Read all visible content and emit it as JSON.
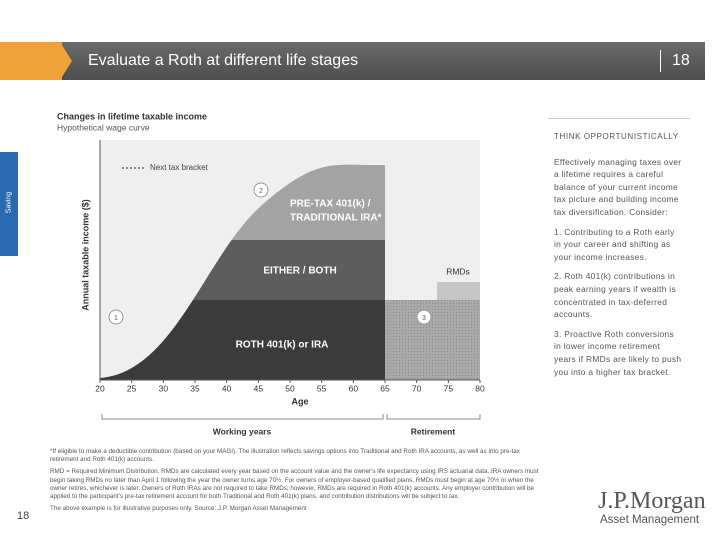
{
  "header": {
    "title": "Evaluate a Roth at different life stages",
    "page_number": "18"
  },
  "side_tab": "Saving",
  "chart": {
    "title": "Changes in lifetime taxable income",
    "subtitle": "Hypothetical wage curve",
    "legend_label": "Next tax bracket",
    "y_axis_label": "Annual taxable income ($)",
    "x_axis_label": "Age",
    "xlim": [
      20,
      80
    ],
    "xticks": [
      20,
      25,
      30,
      35,
      40,
      45,
      50,
      55,
      60,
      65,
      70,
      75,
      80
    ],
    "region_labels": [
      "PRE-TAX 401(k) /",
      "TRADITIONAL IRA*",
      "EITHER / BOTH",
      "ROTH 401(k) or IRA",
      "RMDs"
    ],
    "markers": [
      "1",
      "2",
      "3"
    ],
    "period_labels": [
      "Working years",
      "Retirement"
    ]
  },
  "sidebar": {
    "heading": "THINK OPPORTUNISTICALLY",
    "paragraphs": [
      "Effectively managing taxes over a lifetime requires a careful balance of your current income tax picture and building income tax diversification. Consider:",
      "1. Contributing to a Roth early in your career and shifting as your income increases.",
      "2. Roth 401(k) contributions in peak earning years if wealth is concentrated in tax-deferred accounts.",
      "3. Proactive Roth conversions in lower income retirement years if RMDs are likely to push you into a higher tax bracket."
    ]
  },
  "footnotes": [
    "*If eligible to make a deductible contribution (based on your MAGI). The illustration reflects savings options into Traditional and Roth IRA accounts, as well as into pre-tax retirement and Roth 401(k) accounts.",
    "RMD = Required Minimum Distribution. RMDs are calculated every year based on the account value and the owner's life expectancy using IRS actuarial data. IRA owners must begin taking RMDs no later than April 1 following the year the owner turns age 70½. For owners of employer-based qualified plans, RMDs must begin at age 70½ or when the owner retires, whichever is later. Owners of Roth IRAs are not required to take RMDs; however, RMDs are required in Roth 401(k) accounts. Any employer contribution will be applied to the participant's pre-tax retirement account for both Traditional and Roth 401(k) plans, and contribution distributions will be subject to tax.",
    "The above example is for illustrative purposes only. Source: J.P. Morgan Asset Management"
  ],
  "footer": {
    "page_number": "18",
    "logo_name": "J.P.Morgan",
    "logo_sub": "Asset Management"
  }
}
